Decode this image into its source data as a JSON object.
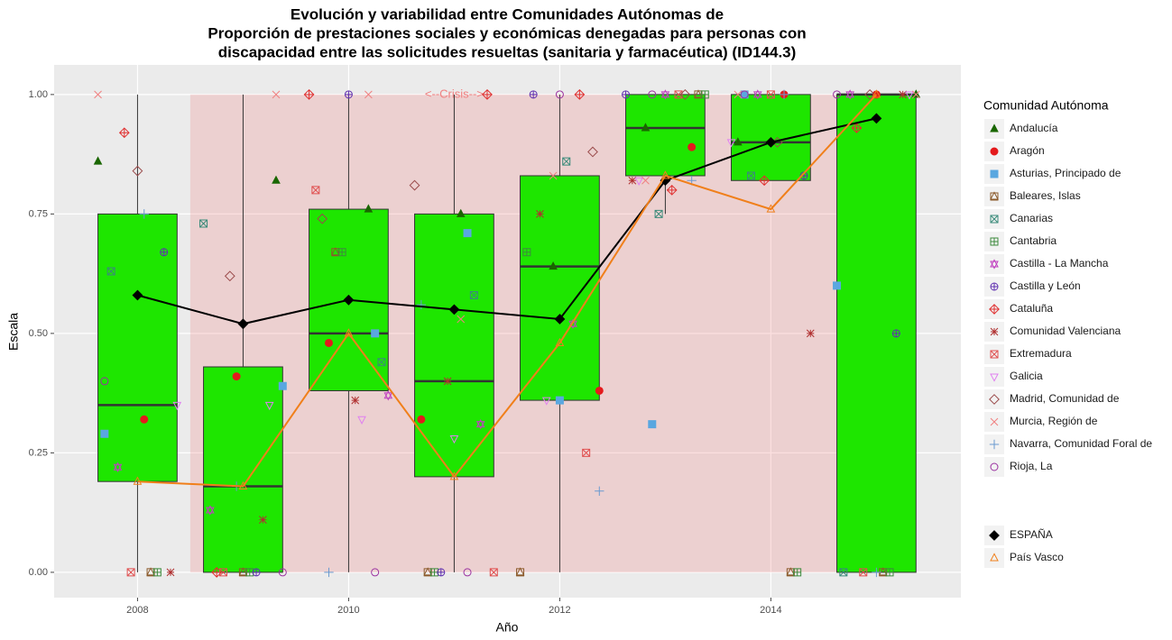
{
  "chart_data": {
    "type": "box",
    "title": [
      "Evolución y variabilidad entre Comunidades Autónomas de",
      "Proporción de prestaciones sociales y económicas denegadas para personas con",
      "discapacidad entre las solicitudes resueltas (sanitaria y farmacéutica) (ID144.3)"
    ],
    "x_label": "Año",
    "y_label": "Escala",
    "legend_title": "Comunidad Autónoma",
    "x": [
      2008,
      2009,
      2010,
      2011,
      2012,
      2013,
      2014,
      2015
    ],
    "xlim": [
      2007.21,
      2015.8
    ],
    "ylim": [
      -0.053,
      1.062
    ],
    "xticks": [
      2008,
      2010,
      2012,
      2014
    ],
    "yticks": [
      {
        "value": 0,
        "label": "0.00"
      },
      {
        "value": 0.25,
        "label": "0.25"
      },
      {
        "value": 0.5,
        "label": "0.50"
      },
      {
        "value": 0.75,
        "label": "0.75"
      },
      {
        "value": 1,
        "label": "1.00"
      }
    ],
    "grid": true,
    "crisis": {
      "label": "<--Crisis-->",
      "range": [
        2008.5,
        2015
      ],
      "label_x": 2011,
      "label_y": 1.0,
      "color": "#f08080"
    },
    "boxes": {
      "color": "#1ee600",
      "lower_whisker": [
        0,
        0,
        0,
        0,
        0,
        0.75,
        0.82,
        0
      ],
      "q1": [
        0.19,
        0,
        0.38,
        0.2,
        0.36,
        0.83,
        0.82,
        0
      ],
      "median": [
        0.35,
        0.18,
        0.5,
        0.4,
        0.64,
        0.93,
        0.9,
        1.0
      ],
      "q3": [
        0.75,
        0.43,
        0.76,
        0.75,
        0.83,
        1.0,
        1.0,
        1.0
      ],
      "upper_whisker": [
        1.0,
        1.0,
        1.0,
        1.0,
        1.0,
        1.0,
        1.0,
        1.0
      ]
    },
    "series": [
      {
        "name": "Andalucía",
        "color": "#1a6600",
        "shape": "triangle",
        "values": [
          0.86,
          0.82,
          0.76,
          0.75,
          0.64,
          0.93,
          0.9,
          1.0
        ]
      },
      {
        "name": "Aragón",
        "color": "#e41a1c",
        "shape": "dot",
        "values": [
          0.32,
          0.41,
          0.48,
          0.32,
          0.38,
          0.89,
          1.0,
          1.0
        ]
      },
      {
        "name": "Asturias, Principado de",
        "color": "#5aa7e0",
        "shape": "square",
        "values": [
          0.29,
          0.39,
          0.5,
          0.71,
          0.36,
          0.31,
          1.0,
          0.6
        ]
      },
      {
        "name": "Baleares, Islas",
        "color": "#8b5a2b",
        "shape": "square-triangle",
        "values": [
          0,
          0,
          0.67,
          0,
          0,
          1.0,
          0,
          0
        ]
      },
      {
        "name": "Canarias",
        "color": "#3a8b7a",
        "shape": "square-x",
        "values": [
          0.63,
          0.73,
          0.44,
          0.58,
          0.86,
          0.75,
          0.83,
          0
        ]
      },
      {
        "name": "Cantabria",
        "color": "#3d8b3d",
        "shape": "square-plus",
        "values": [
          0,
          0,
          0.67,
          0,
          0.67,
          1.0,
          0,
          0
        ]
      },
      {
        "name": "Castilla - La Mancha",
        "color": "#c040c0",
        "shape": "star",
        "values": [
          0.22,
          0.13,
          0.37,
          0.31,
          0.52,
          1.0,
          1.0,
          1.0
        ]
      },
      {
        "name": "Castilla y León",
        "color": "#6030b0",
        "shape": "circle-plus",
        "values": [
          0.67,
          0,
          1.0,
          0,
          1.0,
          1.0,
          0.83,
          0.5
        ]
      },
      {
        "name": "Cataluña",
        "color": "#e03030",
        "shape": "diamond-plus",
        "values": [
          0.92,
          0,
          1.0,
          1.0,
          1.0,
          0.8,
          0.82,
          0.93
        ]
      },
      {
        "name": "Comunidad Valenciana",
        "color": "#b03030",
        "shape": "asterisk",
        "values": [
          0,
          0.11,
          0.36,
          0.4,
          0.75,
          0.82,
          0.5,
          1.0
        ]
      },
      {
        "name": "Extremadura",
        "color": "#e05050",
        "shape": "square-x",
        "values": [
          0,
          0,
          0.8,
          0,
          0.25,
          1.0,
          1.0,
          0
        ]
      },
      {
        "name": "Galicia",
        "color": "#e080f0",
        "shape": "down-triangle",
        "values": [
          0.35,
          0.35,
          0.32,
          0.28,
          0.36,
          0.82,
          0.9,
          1.0
        ]
      },
      {
        "name": "Madrid, Comunidad de",
        "color": "#9a4a4a",
        "shape": "diamond",
        "values": [
          0.84,
          0.62,
          0.74,
          0.81,
          0.88,
          1.0,
          0.9,
          1.0
        ]
      },
      {
        "name": "Murcia, Región de",
        "color": "#f08080",
        "shape": "x",
        "values": [
          1.0,
          1.0,
          1.0,
          0.53,
          0.83,
          0.82,
          1.0,
          1.0
        ]
      },
      {
        "name": "Navarra, Comunidad Foral de",
        "color": "#6a9ad0",
        "shape": "plus",
        "values": [
          0.75,
          0.18,
          0,
          0.56,
          0.17,
          0.82,
          1.0,
          0
        ]
      },
      {
        "name": "Rioja, La",
        "color": "#9a30a0",
        "shape": "circle",
        "values": [
          0.4,
          0,
          0,
          0,
          1.0,
          1.0,
          1.0,
          1.0
        ]
      }
    ],
    "summary_series": [
      {
        "name": "ESPAÑA",
        "color": "#000000",
        "shape": "diamond-filled",
        "values": [
          0.58,
          0.52,
          0.57,
          0.55,
          0.53,
          0.82,
          0.9,
          0.95
        ]
      },
      {
        "name": "País Vasco",
        "color": "#f07f1a",
        "shape": "triangle-open",
        "values": [
          0.19,
          0.18,
          0.5,
          0.2,
          0.48,
          0.83,
          0.76,
          1.0
        ]
      }
    ]
  }
}
